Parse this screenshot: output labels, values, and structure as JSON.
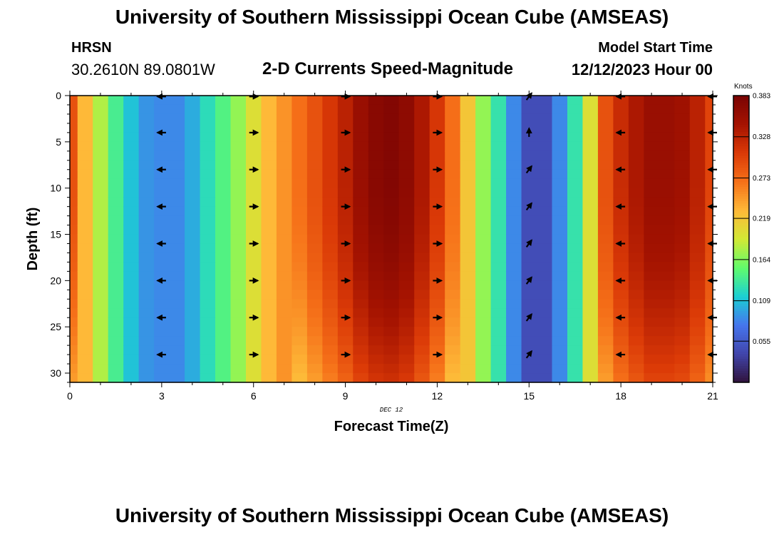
{
  "header": {
    "title": "University of Southern Mississippi Ocean Cube (AMSEAS)",
    "station": "HRSN",
    "coordinates": "30.2610N  89.0801W",
    "subtitle": "2-D Currents Speed-Magnitude",
    "model_start_label": "Model Start Time",
    "model_start_value": "12/12/2023 Hour 00"
  },
  "footer": {
    "title": "University of Southern Mississippi Ocean Cube (AMSEAS)"
  },
  "chart_data": {
    "type": "heatmap",
    "title": "2-D Currents Speed-Magnitude",
    "xlabel": "Forecast Time(Z)",
    "ylabel": "Depth (ft)",
    "date_annotation": "DEC 12",
    "xlim": [
      0,
      21
    ],
    "ylim": [
      0,
      31
    ],
    "x_ticks": [
      0,
      3,
      6,
      9,
      12,
      15,
      18,
      21
    ],
    "y_ticks": [
      0,
      5,
      10,
      15,
      20,
      25,
      30
    ],
    "colorbar": {
      "label": "Knots",
      "min": 0.0,
      "max": 0.383,
      "ticks": [
        "0.383",
        "0.328",
        "0.273",
        "0.219",
        "0.164",
        "0.109",
        "0.055"
      ],
      "tick_values": [
        0.383,
        0.328,
        0.273,
        0.219,
        0.164,
        0.109,
        0.055
      ]
    },
    "time_hours": [
      0,
      0.5,
      1,
      1.5,
      2,
      2.5,
      3,
      3.5,
      4,
      4.5,
      5,
      5.5,
      6,
      6.5,
      7,
      7.5,
      8,
      8.5,
      9,
      9.5,
      10,
      10.5,
      11,
      11.5,
      12,
      12.5,
      13,
      13.5,
      14,
      14.5,
      15,
      15.5,
      16,
      16.5,
      17,
      17.5,
      18,
      18.5,
      19,
      19.5,
      20,
      20.5,
      21
    ],
    "surface_speed_knots": [
      0.29,
      0.23,
      0.18,
      0.14,
      0.11,
      0.09,
      0.085,
      0.085,
      0.1,
      0.125,
      0.145,
      0.17,
      0.2,
      0.23,
      0.25,
      0.27,
      0.29,
      0.31,
      0.33,
      0.355,
      0.37,
      0.375,
      0.365,
      0.34,
      0.31,
      0.27,
      0.22,
      0.17,
      0.13,
      0.085,
      0.045,
      0.045,
      0.085,
      0.13,
      0.2,
      0.29,
      0.32,
      0.34,
      0.355,
      0.355,
      0.35,
      0.33,
      0.3
    ],
    "depth_factor_surface_to_bottom": [
      1.0,
      0.84
    ],
    "vector_times": [
      3,
      6,
      9,
      12,
      15,
      18,
      21
    ],
    "vector_depths": [
      0,
      4,
      8,
      12,
      16,
      20,
      24,
      28
    ],
    "vector_directions": [
      "W",
      "E",
      "E",
      "E",
      "NE",
      "W",
      "W"
    ]
  }
}
